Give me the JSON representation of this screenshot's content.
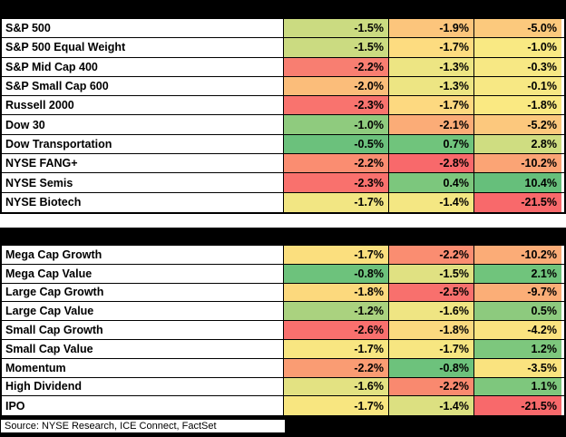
{
  "footer": {
    "source_text": "Source: NYSE Research, ICE Connect, FactSet"
  },
  "colors": {
    "bar_background": "#000000",
    "grid_border": "#000000",
    "scale_min_red": "#F8696B",
    "scale_mid_yellow": "#FFEB84",
    "scale_max_green": "#63BE7B"
  },
  "chart_data": {
    "type": "heatmap",
    "column_headers_visible": false,
    "num_value_columns": 3,
    "legend_position": "none",
    "sections": [
      {
        "id": "section-1",
        "rows": [
          {
            "label": "S&P 500",
            "values": [
              "-1.5%",
              "-1.9%",
              "-5.0%"
            ],
            "colors": [
              "#CBDB81",
              "#FCC57C",
              "#FCC97D"
            ]
          },
          {
            "label": "S&P 500 Equal Weight",
            "values": [
              "-1.5%",
              "-1.7%",
              "-1.0%"
            ],
            "colors": [
              "#CBDB81",
              "#FDDC80",
              "#F9E983"
            ]
          },
          {
            "label": "S&P Mid Cap 400",
            "values": [
              "-2.2%",
              "-1.3%",
              "-0.3%"
            ],
            "colors": [
              "#F87E71",
              "#EDE583",
              "#F7E884"
            ]
          },
          {
            "label": "S&P Small Cap 600",
            "values": [
              "-2.0%",
              "-1.3%",
              "-0.1%"
            ],
            "colors": [
              "#FBBD7A",
              "#EDE583",
              "#F7E884"
            ]
          },
          {
            "label": "Russell 2000",
            "values": [
              "-2.3%",
              "-1.7%",
              "-1.8%"
            ],
            "colors": [
              "#F9736E",
              "#FDD980",
              "#FAE982"
            ]
          },
          {
            "label": "Dow 30",
            "values": [
              "-1.0%",
              "-2.1%",
              "-5.2%"
            ],
            "colors": [
              "#8FCB7E",
              "#FBAC77",
              "#FCC87D"
            ]
          },
          {
            "label": "Dow Transportation",
            "values": [
              "-0.5%",
              "0.7%",
              "2.8%"
            ],
            "colors": [
              "#6BC17C",
              "#70C47C",
              "#CFDD81"
            ]
          },
          {
            "label": "NYSE FANG+",
            "values": [
              "-2.2%",
              "-2.8%",
              "-10.2%"
            ],
            "colors": [
              "#FA8D71",
              "#F8696B",
              "#FBA475"
            ]
          },
          {
            "label": "NYSE Semis",
            "values": [
              "-2.3%",
              "0.4%",
              "10.4%"
            ],
            "colors": [
              "#F9716D",
              "#7CC77D",
              "#66BF7B"
            ]
          },
          {
            "label": "NYSE Biotech",
            "values": [
              "-1.7%",
              "-1.4%",
              "-21.5%"
            ],
            "colors": [
              "#F2E683",
              "#F4E783",
              "#F8696B"
            ]
          }
        ]
      },
      {
        "id": "section-2",
        "rows": [
          {
            "label": "Mega Cap Growth",
            "values": [
              "-1.7%",
              "-2.2%",
              "-10.2%"
            ],
            "colors": [
              "#FBDF7E",
              "#FA8D71",
              "#FBAC77"
            ]
          },
          {
            "label": "Mega Cap Value",
            "values": [
              "-0.8%",
              "-1.5%",
              "2.1%"
            ],
            "colors": [
              "#6DC27C",
              "#E0E182",
              "#70C47C"
            ]
          },
          {
            "label": "Large Cap Growth",
            "values": [
              "-1.8%",
              "-2.5%",
              "-9.7%"
            ],
            "colors": [
              "#FCD97D",
              "#F8706D",
              "#FBAE77"
            ]
          },
          {
            "label": "Large Cap Value",
            "values": [
              "-1.2%",
              "-1.6%",
              "0.5%"
            ],
            "colors": [
              "#AAD27F",
              "#EFE583",
              "#8DCA7E"
            ]
          },
          {
            "label": "Small Cap Growth",
            "values": [
              "-2.6%",
              "-1.8%",
              "-4.2%"
            ],
            "colors": [
              "#F9706E",
              "#FBD97F",
              "#FAE380"
            ]
          },
          {
            "label": "Small Cap Value",
            "values": [
              "-1.7%",
              "-1.7%",
              "1.2%"
            ],
            "colors": [
              "#F8E681",
              "#F7E681",
              "#7DC77D"
            ]
          },
          {
            "label": "Momentum",
            "values": [
              "-2.2%",
              "-0.8%",
              "-3.5%"
            ],
            "colors": [
              "#FA9C73",
              "#6DC27C",
              "#FAE37F"
            ]
          },
          {
            "label": "High Dividend",
            "values": [
              "-1.6%",
              "-2.2%",
              "1.1%"
            ],
            "colors": [
              "#E3E282",
              "#F9896F",
              "#7EC77D"
            ]
          },
          {
            "label": "IPO",
            "values": [
              "-1.7%",
              "-1.4%",
              "-21.5%"
            ],
            "colors": [
              "#F8E680",
              "#DCE081",
              "#F8696B"
            ]
          }
        ]
      }
    ]
  }
}
